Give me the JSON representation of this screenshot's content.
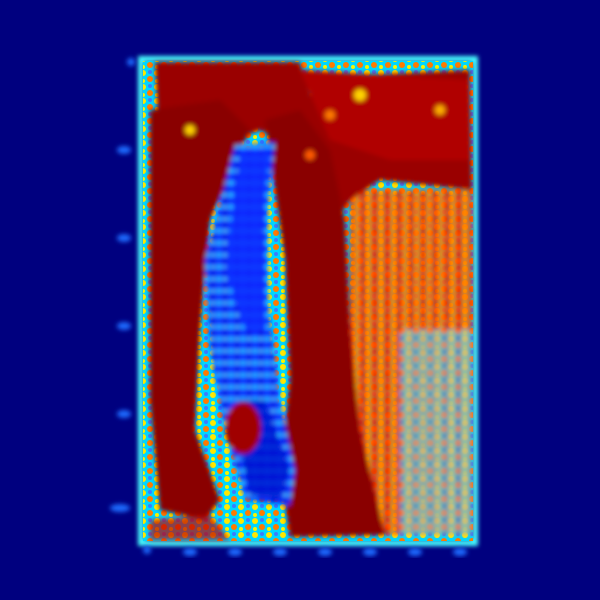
{
  "image": {
    "description_kind": "jet-colormap heatmap rendering of a figure (axes, ticks, and frame also colorized)",
    "colors": {
      "background": "#00007f",
      "frame_cyan": "#47ffff",
      "tick_blue": "#1b6bff",
      "hot_red": "#7f0000",
      "red": "#d60000",
      "orange": "#ff7a00",
      "yellow": "#f7f700",
      "cyan": "#2cf2ff",
      "blue": "#005dff",
      "deep_blue": "#0000b8"
    }
  }
}
